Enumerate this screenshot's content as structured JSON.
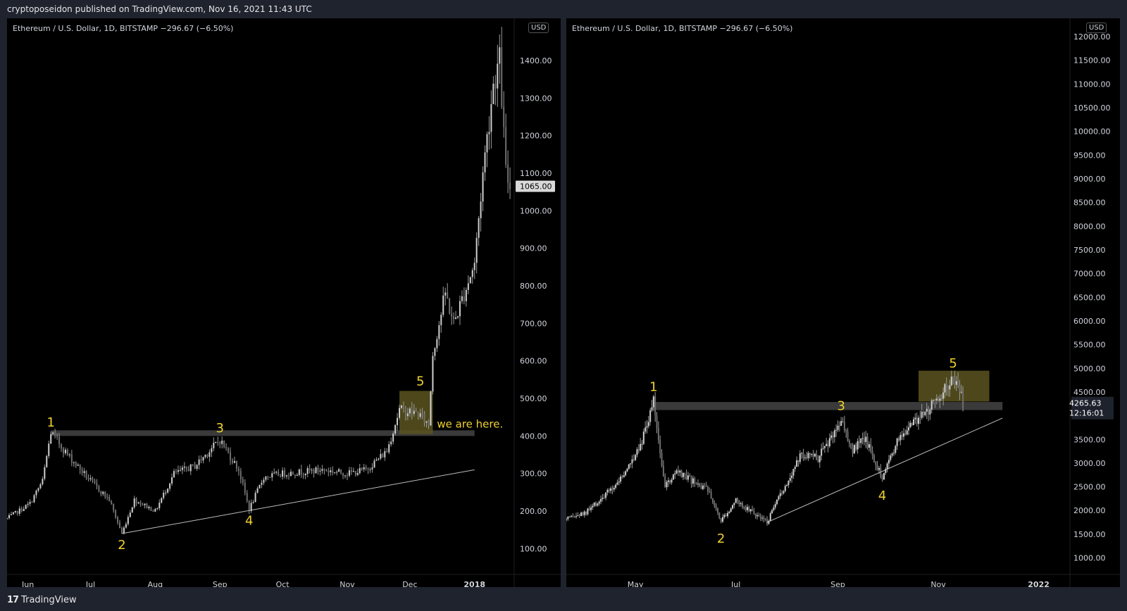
{
  "header": {
    "publisher_text": "cryptoposeidon published on TradingView.com, Nov 16, 2021 11:43 UTC"
  },
  "footer": {
    "logo_glyph": "17",
    "brand": "TradingView"
  },
  "colors": {
    "candle": "#9a9a9a",
    "wave_label": "#f0d230",
    "zone": "#5a5320",
    "resistance": "#3a3a3a",
    "trendline": "#bdbdbd"
  },
  "chart_data": [
    {
      "type": "candlestick",
      "legend": "Ethereum / U.S. Dollar, 1D, BITSTAMP  −296.67 (−6.50%)",
      "currency": "USD",
      "x_ticks": [
        "Jun",
        "Jul",
        "Aug",
        "Sep",
        "Oct",
        "Nov",
        "Dec",
        "2018"
      ],
      "y_ticks": [
        "100.00",
        "200.00",
        "300.00",
        "400.00",
        "500.00",
        "600.00",
        "700.00",
        "800.00",
        "900.00",
        "1000.00",
        "1100.00",
        "1200.00",
        "1300.00",
        "1400.00"
      ],
      "ylim": [
        50,
        1460
      ],
      "xlim": [
        "2017-05-22",
        "2018-01-20"
      ],
      "last_price": "1065.00",
      "price_path": [
        [
          "2017-05-22",
          180
        ],
        [
          "2017-06-02",
          220
        ],
        [
          "2017-06-08",
          280
        ],
        [
          "2017-06-12",
          410
        ],
        [
          "2017-06-20",
          350
        ],
        [
          "2017-07-01",
          280
        ],
        [
          "2017-07-10",
          230
        ],
        [
          "2017-07-16",
          140
        ],
        [
          "2017-07-22",
          230
        ],
        [
          "2017-08-01",
          200
        ],
        [
          "2017-08-10",
          300
        ],
        [
          "2017-08-20",
          320
        ],
        [
          "2017-09-01",
          390
        ],
        [
          "2017-09-10",
          310
        ],
        [
          "2017-09-15",
          205
        ],
        [
          "2017-09-22",
          290
        ],
        [
          "2017-10-01",
          300
        ],
        [
          "2017-10-12",
          305
        ],
        [
          "2017-10-20",
          310
        ],
        [
          "2017-11-01",
          300
        ],
        [
          "2017-11-10",
          310
        ],
        [
          "2017-11-20",
          360
        ],
        [
          "2017-11-26",
          470
        ],
        [
          "2017-12-05",
          460
        ],
        [
          "2017-12-10",
          430
        ],
        [
          "2017-12-12",
          620
        ],
        [
          "2017-12-18",
          780
        ],
        [
          "2017-12-22",
          700
        ],
        [
          "2018-01-01",
          860
        ],
        [
          "2018-01-05",
          1100
        ],
        [
          "2018-01-10",
          1340
        ],
        [
          "2018-01-13",
          1400
        ],
        [
          "2018-01-16",
          1100
        ],
        [
          "2018-01-18",
          1065
        ]
      ],
      "wave_labels": [
        {
          "text": "1",
          "date": "2017-06-12",
          "price": 410
        },
        {
          "text": "2",
          "date": "2017-07-16",
          "price": 140
        },
        {
          "text": "3",
          "date": "2017-09-01",
          "price": 395
        },
        {
          "text": "4",
          "date": "2017-09-15",
          "price": 205
        },
        {
          "text": "5",
          "date": "2017-12-06",
          "price": 520
        }
      ],
      "resistance": [
        400,
        415
      ],
      "resistance_x": [
        "2017-06-12",
        "2018-01-01"
      ],
      "zone": {
        "x": [
          "2017-11-26",
          "2017-12-12"
        ],
        "y": [
          405,
          520
        ]
      },
      "trendline": [
        [
          "2017-07-16",
          140
        ],
        [
          "2018-01-01",
          310
        ]
      ],
      "annotation": {
        "text": "we are here.",
        "date": "2017-12-14",
        "price": 432
      }
    },
    {
      "type": "candlestick",
      "legend": "Ethereum / U.S. Dollar, 1D, BITSTAMP  −296.67 (−6.50%)",
      "currency": "USD",
      "x_ticks": [
        "May",
        "Jul",
        "Sep",
        "Nov",
        "2022"
      ],
      "y_ticks": [
        "1000.00",
        "1500.00",
        "2000.00",
        "2500.00",
        "3000.00",
        "3500.00",
        "4000.00",
        "4500.00",
        "5000.00",
        "5500.00",
        "6000.00",
        "6500.00",
        "7000.00",
        "7500.00",
        "8000.00",
        "8500.00",
        "9000.00",
        "9500.00",
        "10000.00",
        "10500.00",
        "11000.00",
        "11500.00",
        "12000.00"
      ],
      "ylim": [
        800,
        12120
      ],
      "xlim": [
        "2021-03-20",
        "2022-01-20"
      ],
      "last_price": "4265.63",
      "countdown": "12:16:01",
      "price_path": [
        [
          "2021-03-20",
          1800
        ],
        [
          "2021-04-01",
          1950
        ],
        [
          "2021-04-15",
          2400
        ],
        [
          "2021-04-25",
          2800
        ],
        [
          "2021-05-05",
          3500
        ],
        [
          "2021-05-12",
          4300
        ],
        [
          "2021-05-19",
          2500
        ],
        [
          "2021-05-26",
          2800
        ],
        [
          "2021-06-05",
          2600
        ],
        [
          "2021-06-15",
          2400
        ],
        [
          "2021-06-22",
          1800
        ],
        [
          "2021-07-01",
          2200
        ],
        [
          "2021-07-10",
          2000
        ],
        [
          "2021-07-20",
          1750
        ],
        [
          "2021-08-01",
          2600
        ],
        [
          "2021-08-10",
          3200
        ],
        [
          "2021-08-20",
          3100
        ],
        [
          "2021-09-03",
          3900
        ],
        [
          "2021-09-10",
          3300
        ],
        [
          "2021-09-18",
          3500
        ],
        [
          "2021-09-28",
          2700
        ],
        [
          "2021-10-06",
          3400
        ],
        [
          "2021-10-15",
          3800
        ],
        [
          "2021-10-25",
          4100
        ],
        [
          "2021-11-01",
          4400
        ],
        [
          "2021-11-10",
          4800
        ],
        [
          "2021-11-14",
          4600
        ],
        [
          "2021-11-16",
          4265
        ]
      ],
      "wave_labels": [
        {
          "text": "1",
          "date": "2021-05-12",
          "price": 4400
        },
        {
          "text": "2",
          "date": "2021-06-22",
          "price": 1650
        },
        {
          "text": "3",
          "date": "2021-09-03",
          "price": 4000
        },
        {
          "text": "4",
          "date": "2021-09-28",
          "price": 2550
        },
        {
          "text": "5",
          "date": "2021-11-10",
          "price": 4900
        }
      ],
      "resistance": [
        4120,
        4290
      ],
      "resistance_x": [
        "2021-05-12",
        "2021-12-10"
      ],
      "zone": {
        "x": [
          "2021-10-20",
          "2021-12-02"
        ],
        "y": [
          4300,
          4950
        ]
      },
      "trendline": [
        [
          "2021-07-20",
          1750
        ],
        [
          "2021-12-10",
          3950
        ]
      ]
    }
  ]
}
